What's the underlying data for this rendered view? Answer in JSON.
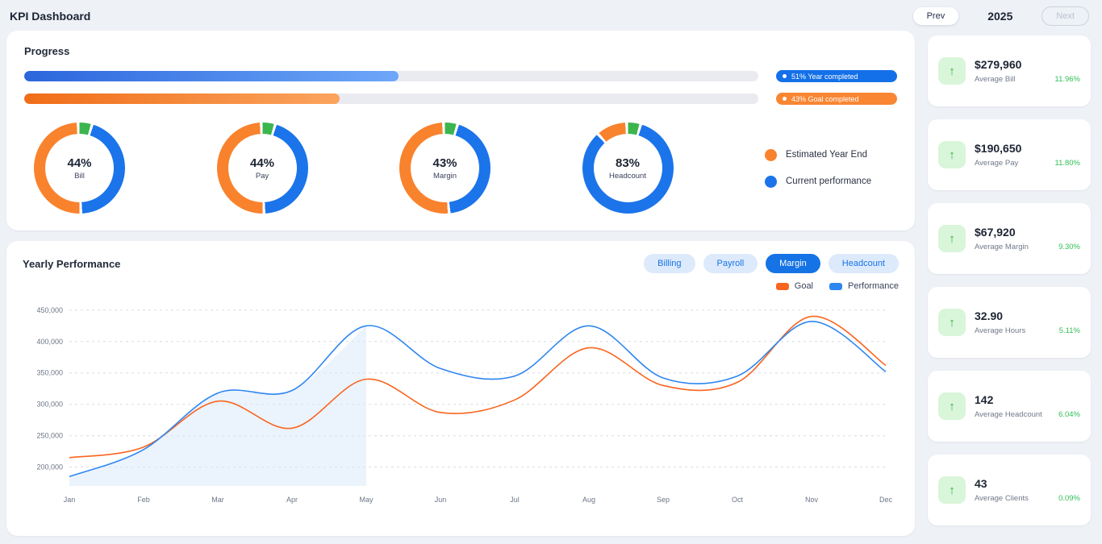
{
  "header": {
    "title": "KPI Dashboard",
    "prev_label": "Prev",
    "year": "2025",
    "next_label": "Next"
  },
  "progress": {
    "title": "Progress",
    "bars": [
      {
        "percent": 51,
        "label": "51% Year completed",
        "fill_from": "#2b66dd",
        "fill_to": "#6ea7f8",
        "pill_color": "#1470e8"
      },
      {
        "percent": 43,
        "label": "43% Goal completed",
        "fill_from": "#f06d18",
        "fill_to": "#fba45e",
        "pill_color": "#f98632"
      }
    ],
    "donuts": [
      {
        "percent_label": "44%",
        "label": "Bill",
        "value": 44
      },
      {
        "percent_label": "44%",
        "label": "Pay",
        "value": 44
      },
      {
        "percent_label": "43%",
        "label": "Margin",
        "value": 43
      },
      {
        "percent_label": "83%",
        "label": "Headcount",
        "value": 83
      }
    ],
    "donut_colors": {
      "current": "#1b74ea",
      "estimate": "#f9822d",
      "accent": "#3cb54e"
    },
    "legend": [
      {
        "label": "Estimated Year End",
        "color": "#f9822d"
      },
      {
        "label": "Current performance",
        "color": "#1b74ea"
      }
    ]
  },
  "performance": {
    "title": "Yearly Performance",
    "tabs": [
      {
        "label": "Billing",
        "active": false
      },
      {
        "label": "Payroll",
        "active": false
      },
      {
        "label": "Margin",
        "active": true
      },
      {
        "label": "Headcount",
        "active": false
      }
    ],
    "legend": [
      {
        "label": "Goal",
        "color": "#f9651e"
      },
      {
        "label": "Performance",
        "color": "#2e86f0"
      }
    ]
  },
  "chart_data": {
    "type": "line",
    "title": "Yearly Performance",
    "x": [
      "Jan",
      "Feb",
      "Mar",
      "Apr",
      "May",
      "Jun",
      "Jul",
      "Aug",
      "Sep",
      "Oct",
      "Nov",
      "Dec"
    ],
    "series": [
      {
        "name": "Goal",
        "color": "#f9651e",
        "values": [
          215000,
          232000,
          305000,
          262000,
          340000,
          287000,
          307000,
          390000,
          330000,
          335000,
          440000,
          362000
        ]
      },
      {
        "name": "Performance",
        "color": "#2e86f0",
        "values": [
          185000,
          228000,
          318000,
          322000,
          425000,
          357000,
          345000,
          425000,
          342000,
          345000,
          432000,
          352000
        ]
      }
    ],
    "ylim": [
      170000,
      460000
    ],
    "yticks": [
      200000,
      250000,
      300000,
      350000,
      400000,
      450000
    ],
    "grid": true,
    "legend_position": "top-right",
    "shaded_region_end": "May",
    "shade_color": "#dbe9fa"
  },
  "sidebar": {
    "cards": [
      {
        "value": "$279,960",
        "label": "Average Bill",
        "delta": "11.96%"
      },
      {
        "value": "$190,650",
        "label": "Average Pay",
        "delta": "11.80%"
      },
      {
        "value": "$67,920",
        "label": "Average Margin",
        "delta": "9.30%"
      },
      {
        "value": "32.90",
        "label": "Average Hours",
        "delta": "5.11%"
      },
      {
        "value": "142",
        "label": "Average Headcount",
        "delta": "6.04%"
      },
      {
        "value": "43",
        "label": "Average Clients",
        "delta": "0.09%"
      }
    ]
  }
}
